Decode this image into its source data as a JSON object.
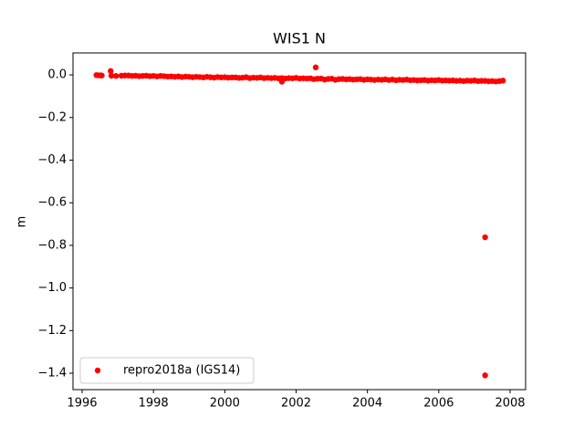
{
  "chart_data": {
    "type": "scatter",
    "title": "WIS1 N",
    "y_label": "m",
    "xlim": [
      1995.744,
      2008.435
    ],
    "ylim": [
      -1.477,
      0.103
    ],
    "xticks": [
      1996,
      1998,
      2000,
      2002,
      2004,
      2006,
      2008
    ],
    "yticks": [
      {
        "value": 0,
        "label": "0.0"
      },
      {
        "value": -0.2,
        "label": "−0.2"
      },
      {
        "value": -0.4,
        "label": "−0.4"
      },
      {
        "value": -0.6,
        "label": "−0.6"
      },
      {
        "value": -0.8,
        "label": "−0.8"
      },
      {
        "value": -1.0,
        "label": "−1.0"
      },
      {
        "value": -1.2,
        "label": "−1.2"
      },
      {
        "value": -1.4,
        "label": "−1.4"
      }
    ],
    "grid": false,
    "legend": "lower left",
    "series": [
      {
        "name": "repro2018a (IGS14)",
        "color": "#ff0000",
        "x": [
          1996.4,
          1996.45,
          1996.5,
          1996.55,
          1996.8,
          1996.82,
          1996.95,
          1997.1,
          1997.2,
          1997.3,
          1997.4,
          1997.5,
          1997.6,
          1997.7,
          1997.8,
          1997.9,
          1998.0,
          1998.1,
          1998.2,
          1998.3,
          1998.4,
          1998.5,
          1998.6,
          1998.7,
          1998.8,
          1998.9,
          1999.0,
          1999.1,
          1999.2,
          1999.3,
          1999.4,
          1999.5,
          1999.6,
          1999.7,
          1999.8,
          1999.9,
          2000.0,
          2000.1,
          2000.2,
          2000.3,
          2000.4,
          2000.5,
          2000.6,
          2000.7,
          2000.8,
          2000.9,
          2001.0,
          2001.1,
          2001.2,
          2001.3,
          2001.4,
          2001.5,
          2001.6,
          2001.7,
          2001.8,
          2001.9,
          2002.0,
          2002.1,
          2002.2,
          2002.3,
          2002.4,
          2002.5,
          2002.6,
          2002.7,
          2002.8,
          2002.9,
          2003.0,
          2003.1,
          2003.2,
          2003.3,
          2003.4,
          2003.5,
          2003.6,
          2003.7,
          2003.8,
          2003.9,
          2004.0,
          2004.1,
          2004.2,
          2004.3,
          2004.4,
          2004.5,
          2004.6,
          2004.7,
          2004.8,
          2004.9,
          2005.0,
          2005.1,
          2005.2,
          2005.3,
          2005.4,
          2005.5,
          2005.6,
          2005.7,
          2005.8,
          2005.9,
          2006.0,
          2006.1,
          2006.2,
          2006.3,
          2006.4,
          2006.5,
          2006.6,
          2006.7,
          2006.8,
          2006.9,
          2007.0,
          2007.1,
          2007.2,
          2007.3,
          2007.4,
          2007.5,
          2007.6,
          2007.7,
          2007.8,
          2001.6,
          2002.55,
          2007.3,
          2007.3
        ],
        "values": [
          -0.001,
          -0.002,
          -0.002,
          -0.003,
          0.018,
          -0.004,
          -0.005,
          -0.004,
          -0.003,
          -0.003,
          -0.005,
          -0.004,
          -0.006,
          -0.005,
          -0.004,
          -0.006,
          -0.005,
          -0.007,
          -0.005,
          -0.006,
          -0.008,
          -0.007,
          -0.009,
          -0.007,
          -0.01,
          -0.008,
          -0.009,
          -0.011,
          -0.009,
          -0.01,
          -0.012,
          -0.009,
          -0.011,
          -0.013,
          -0.01,
          -0.012,
          -0.011,
          -0.013,
          -0.012,
          -0.012,
          -0.014,
          -0.013,
          -0.011,
          -0.015,
          -0.013,
          -0.014,
          -0.012,
          -0.015,
          -0.014,
          -0.015,
          -0.014,
          -0.016,
          -0.015,
          -0.017,
          -0.015,
          -0.016,
          -0.014,
          -0.017,
          -0.016,
          -0.017,
          -0.016,
          -0.02,
          -0.018,
          -0.017,
          -0.022,
          -0.019,
          -0.018,
          -0.023,
          -0.02,
          -0.019,
          -0.021,
          -0.02,
          -0.022,
          -0.021,
          -0.02,
          -0.023,
          -0.021,
          -0.022,
          -0.024,
          -0.022,
          -0.023,
          -0.021,
          -0.024,
          -0.022,
          -0.025,
          -0.023,
          -0.024,
          -0.022,
          -0.025,
          -0.024,
          -0.026,
          -0.025,
          -0.024,
          -0.027,
          -0.025,
          -0.026,
          -0.024,
          -0.027,
          -0.026,
          -0.027,
          -0.026,
          -0.028,
          -0.027,
          -0.029,
          -0.027,
          -0.028,
          -0.026,
          -0.029,
          -0.028,
          -0.028,
          -0.03,
          -0.029,
          -0.031,
          -0.029,
          -0.027,
          -0.032,
          0.035,
          -0.762,
          -1.41
        ]
      }
    ]
  }
}
